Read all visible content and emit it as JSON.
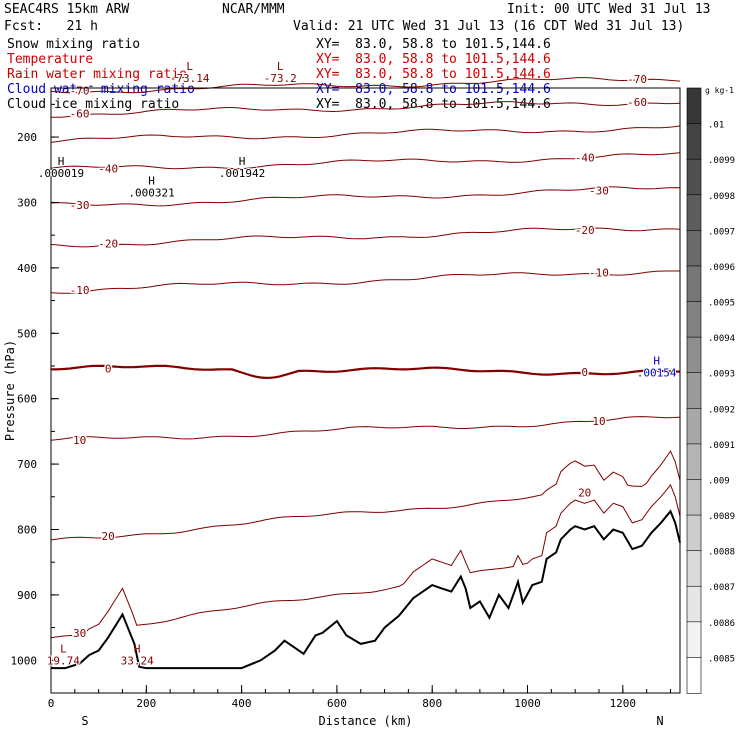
{
  "header": {
    "model": "SEAC4RS 15km ARW",
    "source": "NCAR/MMM",
    "init": "Init: 00 UTC Wed 31 Jul 13",
    "fcst": "Fcst:   21 h",
    "valid": "Valid: 21 UTC Wed 31 Jul 13 (16 CDT Wed 31 Jul 13)"
  },
  "variables": [
    {
      "name": "Snow mixing ratio",
      "xy": "XY=  83.0, 58.8 to 101.5,144.6",
      "color": "#000000"
    },
    {
      "name": "Temperature",
      "xy": "XY=  83.0, 58.8 to 101.5,144.6",
      "color": "#cc0000"
    },
    {
      "name": "Rain water mixing ratio",
      "xy": "XY=  83.0, 58.8 to 101.5,144.6",
      "color": "#cc0000"
    },
    {
      "name": "Cloud water mixing ratio",
      "xy": "XY=  83.0, 58.8 to 101.5,144.6",
      "color": "#0000cc"
    },
    {
      "name": "Cloud ice mixing ratio",
      "xy": "XY=  83.0, 58.8 to 101.5,144.6",
      "color": "#000000"
    }
  ],
  "chart_data": {
    "type": "line",
    "xlabel": "Distance (km)",
    "ylabel": "Pressure (hPa)",
    "xlim": [
      0,
      1320
    ],
    "ylim": [
      1050,
      125
    ],
    "x_ticks": [
      0,
      200,
      400,
      600,
      800,
      1000,
      1200
    ],
    "y_ticks": [
      200,
      300,
      400,
      500,
      600,
      700,
      800,
      900,
      1000
    ],
    "endpoints": {
      "left": "S",
      "right": "N"
    },
    "temperature_contours": [
      {
        "level": -70,
        "p_start": 130,
        "p_end": 110,
        "label": "-70"
      },
      {
        "level": -60,
        "p_start": 165,
        "p_end": 145,
        "label": "-60"
      },
      {
        "level": -50,
        "p_start": 205,
        "p_end": 185,
        "label": ""
      },
      {
        "level": -40,
        "p_start": 250,
        "p_end": 228,
        "label": "-40"
      },
      {
        "level": -30,
        "p_start": 305,
        "p_end": 278,
        "label": "-30"
      },
      {
        "level": -20,
        "p_start": 365,
        "p_end": 338,
        "label": "-20"
      },
      {
        "level": -10,
        "p_start": 435,
        "p_end": 403,
        "label": "-10"
      },
      {
        "level": 0,
        "p_start": 553,
        "p_end": 560,
        "label": "0"
      },
      {
        "level": 10,
        "p_start": 665,
        "p_end": 630,
        "label": "10"
      },
      {
        "level": 20,
        "p_start": 818,
        "p_end": 730,
        "label": "20"
      },
      {
        "level": 30,
        "p_start": 965,
        "p_end": 820,
        "label": "30"
      }
    ],
    "extrema_labels": [
      {
        "kind": "L",
        "value": "-73.14",
        "x": 270,
        "p": 110,
        "color": "#800000"
      },
      {
        "kind": "L",
        "value": "-73.2",
        "x": 460,
        "p": 110,
        "color": "#800000"
      },
      {
        "kind": "H",
        "value": ".000019",
        "x": 0,
        "p": 255,
        "color": "#000000"
      },
      {
        "kind": "H",
        "value": ".000321",
        "x": 190,
        "p": 285,
        "color": "#000000"
      },
      {
        "kind": "H",
        "value": ".001942",
        "x": 380,
        "p": 255,
        "color": "#000000"
      },
      {
        "kind": "H",
        "value": ".00154",
        "x": 1250,
        "p": 560,
        "color": "#0000cc"
      },
      {
        "kind": "L",
        "value": "19.74",
        "x": 5,
        "p": 1000,
        "color": "#800000"
      },
      {
        "kind": "H",
        "value": "33.24",
        "x": 160,
        "p": 1000,
        "color": "#800000"
      }
    ],
    "terrain": {
      "x": [
        0,
        30,
        60,
        80,
        100,
        120,
        150,
        175,
        185,
        200,
        300,
        400,
        440,
        470,
        490,
        510,
        530,
        555,
        570,
        600,
        620,
        650,
        680,
        700,
        730,
        760,
        800,
        820,
        840,
        860,
        870,
        880,
        900,
        920,
        940,
        960,
        980,
        990,
        1010,
        1030,
        1040,
        1060,
        1070,
        1090,
        1100,
        1120,
        1140,
        1160,
        1180,
        1200,
        1220,
        1240,
        1260,
        1280,
        1300,
        1310,
        1320
      ],
      "p": [
        1012,
        1012,
        1005,
        992,
        985,
        965,
        930,
        975,
        1010,
        1012,
        1012,
        1012,
        1000,
        985,
        970,
        980,
        990,
        962,
        958,
        940,
        962,
        975,
        970,
        950,
        932,
        905,
        885,
        890,
        895,
        872,
        890,
        920,
        910,
        935,
        900,
        920,
        880,
        912,
        885,
        880,
        845,
        835,
        815,
        800,
        795,
        800,
        795,
        815,
        800,
        805,
        830,
        825,
        805,
        790,
        772,
        790,
        820
      ]
    },
    "colorbar": {
      "unit": "g kg-1",
      "ticks": [
        ".01",
        ".0099",
        ".0098",
        ".0097",
        ".0096",
        ".0095",
        ".0094",
        ".0093",
        ".0092",
        ".0091",
        ".009",
        ".0089",
        ".0088",
        ".0087",
        ".0086",
        ".0085"
      ]
    }
  }
}
